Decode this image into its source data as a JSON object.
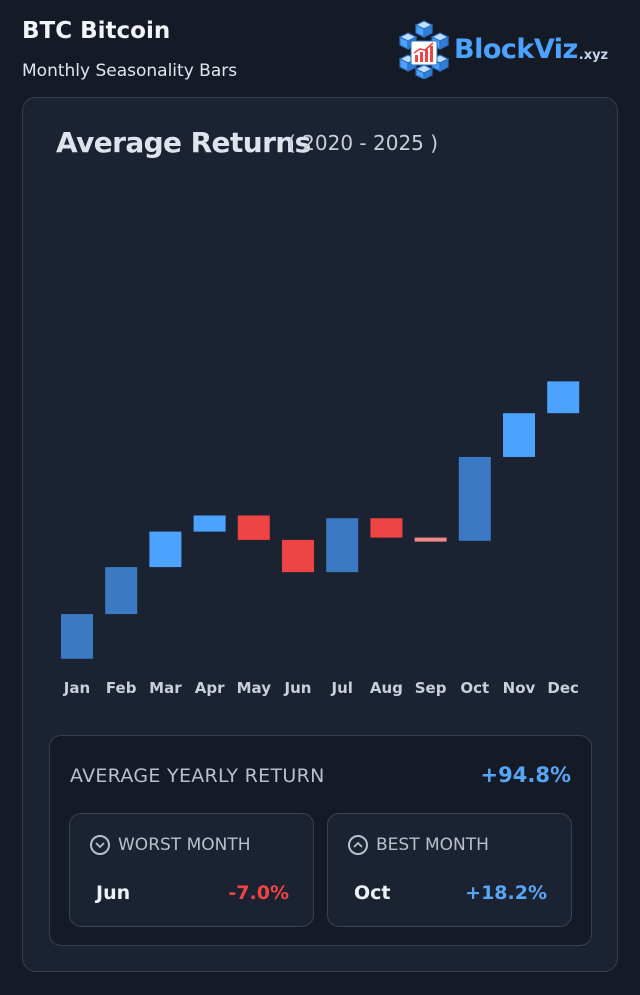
{
  "header": {
    "title": "BTC Bitcoin",
    "subtitle": "Monthly Seasonality Bars",
    "brand_name": "BlockViz",
    "brand_tld": ".xyz"
  },
  "chart_title": "Average Returns",
  "chart_subtitle": "( 2020 - 2025 )",
  "chart_data": {
    "type": "bar",
    "subtype": "waterfall",
    "title": "Average Returns",
    "subtitle": "( 2020 - 2025 )",
    "categories": [
      "Jan",
      "Feb",
      "Mar",
      "Apr",
      "May",
      "Jun",
      "Jul",
      "Aug",
      "Sep",
      "Oct",
      "Nov",
      "Dec"
    ],
    "values": [
      9.7,
      10.2,
      7.7,
      3.5,
      -5.3,
      -7.0,
      11.7,
      -4.2,
      -0.7,
      18.2,
      9.5,
      6.9
    ],
    "ylim": [
      -2,
      100
    ],
    "colors": {
      "positive": "#4ba3ff",
      "positive_dark": "#3b7ac3",
      "negative": "#ef4444",
      "small_negative": "#f08a86"
    },
    "bar_shades": [
      "dark",
      "dark",
      "light",
      "light",
      "neg",
      "neg",
      "dark",
      "neg",
      "negsmall",
      "dark",
      "light",
      "light"
    ]
  },
  "stats": {
    "avg_label": "AVERAGE YEARLY RETURN",
    "avg_value": "+94.8%",
    "worst": {
      "label": "WORST MONTH",
      "month": "Jun",
      "value": "-7.0%",
      "icon": "chevron-down-circle-icon"
    },
    "best": {
      "label": "BEST MONTH",
      "month": "Oct",
      "value": "+18.2%",
      "icon": "chevron-up-circle-icon"
    }
  }
}
